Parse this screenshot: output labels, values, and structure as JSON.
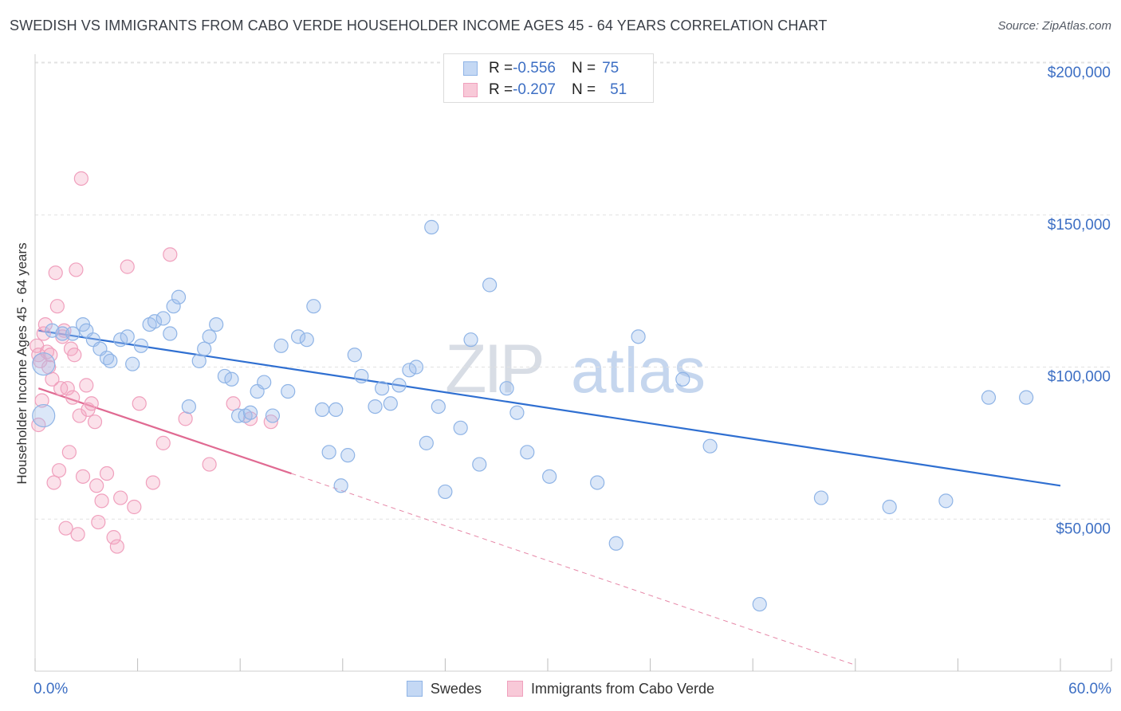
{
  "title": "SWEDISH VS IMMIGRANTS FROM CABO VERDE HOUSEHOLDER INCOME AGES 45 - 64 YEARS CORRELATION CHART",
  "source": "Source: ZipAtlas.com",
  "watermark": {
    "zip": "ZIP",
    "atlas": "atlas"
  },
  "colors": {
    "swedes": "#8fb4e6",
    "swedes_line": "#2f6fd1",
    "cabo": "#f0a0bd",
    "cabo_line": "#e06a92",
    "tick_label": "#3d6fc4",
    "grid": "#e2e2e2"
  },
  "legend_top": {
    "rows": [
      {
        "r_label": "R = ",
        "r_value": "-0.556",
        "n_label": "N = ",
        "n_value": "75"
      },
      {
        "r_label": "R = ",
        "r_value": "-0.207",
        "n_label": "N = ",
        "n_value": "51"
      }
    ]
  },
  "legend_bottom": {
    "swedes": "Swedes",
    "cabo": "Immigrants from Cabo Verde"
  },
  "chart_data": {
    "type": "scatter",
    "title": "SWEDISH VS IMMIGRANTS FROM CABO VERDE HOUSEHOLDER INCOME AGES 45 - 64 YEARS CORRELATION CHART",
    "xlabel": "",
    "ylabel": "Householder Income Ages 45 - 64 years",
    "xlim": [
      0,
      60
    ],
    "ylim": [
      0,
      200000
    ],
    "x_tick_labels": [
      "0.0%",
      "60.0%"
    ],
    "y_ticks": [
      {
        "value": 200000,
        "label": "$200,000"
      },
      {
        "value": 150000,
        "label": "$150,000"
      },
      {
        "value": 100000,
        "label": "$100,000"
      },
      {
        "value": 50000,
        "label": "$50,000"
      }
    ],
    "grid": true,
    "legend": "top-center",
    "series": [
      {
        "name": "Swedes",
        "r": -0.556,
        "n": 75,
        "trend": {
          "x0": 0.2,
          "y0": 112000,
          "x1": 60,
          "y1": 61000
        },
        "points": [
          [
            0.5,
            101000
          ],
          [
            0.5,
            84000
          ],
          [
            1.0,
            112000
          ],
          [
            1.6,
            111000
          ],
          [
            2.2,
            111000
          ],
          [
            2.8,
            114000
          ],
          [
            3.0,
            112000
          ],
          [
            3.4,
            109000
          ],
          [
            3.8,
            106000
          ],
          [
            4.2,
            103000
          ],
          [
            4.4,
            102000
          ],
          [
            5.0,
            109000
          ],
          [
            5.4,
            110000
          ],
          [
            5.7,
            101000
          ],
          [
            6.2,
            107000
          ],
          [
            6.7,
            114000
          ],
          [
            7.0,
            115000
          ],
          [
            7.5,
            116000
          ],
          [
            7.9,
            111000
          ],
          [
            8.1,
            120000
          ],
          [
            8.4,
            123000
          ],
          [
            9.0,
            87000
          ],
          [
            9.6,
            102000
          ],
          [
            9.9,
            106000
          ],
          [
            10.2,
            110000
          ],
          [
            10.6,
            114000
          ],
          [
            11.1,
            97000
          ],
          [
            11.5,
            96000
          ],
          [
            11.9,
            84000
          ],
          [
            12.3,
            84000
          ],
          [
            12.6,
            85000
          ],
          [
            13.0,
            92000
          ],
          [
            13.4,
            95000
          ],
          [
            13.9,
            84000
          ],
          [
            14.4,
            107000
          ],
          [
            14.8,
            92000
          ],
          [
            15.4,
            110000
          ],
          [
            15.9,
            109000
          ],
          [
            16.3,
            120000
          ],
          [
            16.8,
            86000
          ],
          [
            17.2,
            72000
          ],
          [
            17.6,
            86000
          ],
          [
            17.9,
            61000
          ],
          [
            18.3,
            71000
          ],
          [
            18.7,
            104000
          ],
          [
            19.1,
            97000
          ],
          [
            19.9,
            87000
          ],
          [
            20.3,
            93000
          ],
          [
            20.8,
            88000
          ],
          [
            21.3,
            94000
          ],
          [
            21.9,
            99000
          ],
          [
            22.3,
            100000
          ],
          [
            22.9,
            75000
          ],
          [
            23.2,
            146000
          ],
          [
            23.6,
            87000
          ],
          [
            24.0,
            59000
          ],
          [
            24.9,
            80000
          ],
          [
            25.5,
            109000
          ],
          [
            26.6,
            127000
          ],
          [
            27.6,
            93000
          ],
          [
            28.2,
            85000
          ],
          [
            28.8,
            72000
          ],
          [
            30.1,
            64000
          ],
          [
            32.9,
            62000
          ],
          [
            34.0,
            42000
          ],
          [
            35.3,
            110000
          ],
          [
            37.9,
            96000
          ],
          [
            39.5,
            74000
          ],
          [
            42.4,
            22000
          ],
          [
            46.0,
            57000
          ],
          [
            50.0,
            54000
          ],
          [
            53.3,
            56000
          ],
          [
            55.8,
            90000
          ],
          [
            58.0,
            90000
          ],
          [
            26.0,
            68000
          ]
        ]
      },
      {
        "name": "Immigrants from Cabo Verde",
        "r": -0.207,
        "n": 51,
        "trend": {
          "x0": 0.2,
          "y0": 93000,
          "x1": 15,
          "y1": 65000,
          "dash_x1": 48,
          "dash_y1": 2000
        },
        "points": [
          [
            0.1,
            107000
          ],
          [
            0.2,
            104000
          ],
          [
            0.2,
            81000
          ],
          [
            0.3,
            102000
          ],
          [
            0.4,
            89000
          ],
          [
            0.5,
            111000
          ],
          [
            0.6,
            114000
          ],
          [
            0.7,
            105000
          ],
          [
            0.8,
            100000
          ],
          [
            0.9,
            104000
          ],
          [
            1.0,
            96000
          ],
          [
            1.1,
            62000
          ],
          [
            1.2,
            131000
          ],
          [
            1.3,
            120000
          ],
          [
            1.4,
            66000
          ],
          [
            1.5,
            93000
          ],
          [
            1.6,
            110000
          ],
          [
            1.7,
            112000
          ],
          [
            1.9,
            93000
          ],
          [
            2.0,
            72000
          ],
          [
            2.1,
            106000
          ],
          [
            2.2,
            90000
          ],
          [
            2.3,
            104000
          ],
          [
            2.4,
            132000
          ],
          [
            2.5,
            45000
          ],
          [
            2.6,
            84000
          ],
          [
            2.7,
            162000
          ],
          [
            2.8,
            64000
          ],
          [
            3.0,
            94000
          ],
          [
            3.1,
            86000
          ],
          [
            3.3,
            88000
          ],
          [
            3.5,
            82000
          ],
          [
            3.7,
            49000
          ],
          [
            3.9,
            56000
          ],
          [
            4.2,
            65000
          ],
          [
            4.6,
            44000
          ],
          [
            4.8,
            41000
          ],
          [
            5.0,
            57000
          ],
          [
            5.4,
            133000
          ],
          [
            5.8,
            54000
          ],
          [
            6.1,
            88000
          ],
          [
            6.9,
            62000
          ],
          [
            7.5,
            75000
          ],
          [
            7.9,
            137000
          ],
          [
            8.8,
            83000
          ],
          [
            10.2,
            68000
          ],
          [
            11.6,
            88000
          ],
          [
            12.6,
            83000
          ],
          [
            13.8,
            82000
          ],
          [
            1.8,
            47000
          ],
          [
            3.6,
            61000
          ]
        ]
      }
    ]
  }
}
